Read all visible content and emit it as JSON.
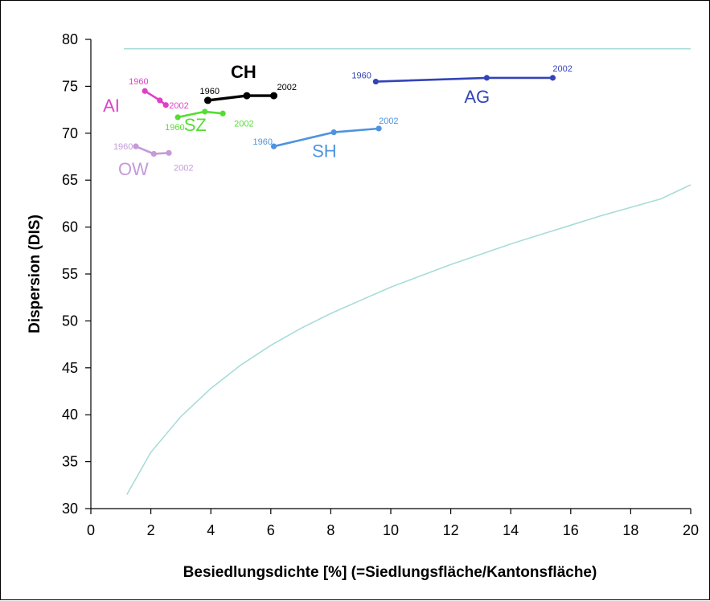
{
  "chart_data": {
    "type": "line",
    "xlabel": "Besiedlungsdichte [%] (=Siedlungsfläche/Kantonsfläche)",
    "ylabel": "Dispersion (DIS)",
    "xlim": [
      0,
      20
    ],
    "ylim": [
      30,
      80
    ],
    "x_ticks": [
      "0",
      "2",
      "4",
      "6",
      "8",
      "10",
      "12",
      "14",
      "16",
      "18",
      "20"
    ],
    "y_ticks": [
      "30",
      "35",
      "40",
      "45",
      "50",
      "55",
      "60",
      "65",
      "70",
      "75",
      "80"
    ],
    "grid": false,
    "series": [
      {
        "name": "AI",
        "color": "#e040c8",
        "points": [
          {
            "x": 1.8,
            "y": 74.5
          },
          {
            "x": 2.3,
            "y": 73.5
          },
          {
            "x": 2.5,
            "y": 73.0
          }
        ],
        "start_label": "1960",
        "end_label": "2002"
      },
      {
        "name": "CH",
        "color": "#000000",
        "bold": true,
        "points": [
          {
            "x": 3.9,
            "y": 73.5
          },
          {
            "x": 5.2,
            "y": 74.0
          },
          {
            "x": 6.1,
            "y": 74.0
          }
        ],
        "start_label": "1960",
        "end_label": "2002"
      },
      {
        "name": "SZ",
        "color": "#55dd33",
        "points": [
          {
            "x": 2.9,
            "y": 71.7
          },
          {
            "x": 3.8,
            "y": 72.3
          },
          {
            "x": 4.4,
            "y": 72.1
          }
        ],
        "start_label": "1960",
        "end_label": "2002"
      },
      {
        "name": "OW",
        "color": "#c49ad8",
        "points": [
          {
            "x": 1.5,
            "y": 68.6
          },
          {
            "x": 2.1,
            "y": 67.8
          },
          {
            "x": 2.6,
            "y": 67.9
          }
        ],
        "start_label": "1960",
        "end_label": "2002"
      },
      {
        "name": "SH",
        "color": "#4c94e0",
        "points": [
          {
            "x": 6.1,
            "y": 68.6
          },
          {
            "x": 8.1,
            "y": 70.1
          },
          {
            "x": 9.6,
            "y": 70.5
          }
        ],
        "start_label": "1960",
        "end_label": "2002"
      },
      {
        "name": "AG",
        "color": "#3344b8",
        "points": [
          {
            "x": 9.5,
            "y": 75.5
          },
          {
            "x": 13.2,
            "y": 75.9
          },
          {
            "x": 15.4,
            "y": 75.9
          }
        ],
        "start_label": "1960",
        "end_label": "2002"
      }
    ],
    "reference_lines": [
      {
        "kind": "horizontal",
        "color": "#a8dcd8",
        "points": [
          {
            "x": 1.1,
            "y": 79
          },
          {
            "x": 20,
            "y": 79
          }
        ]
      },
      {
        "kind": "curve",
        "color": "#a8dcd8",
        "points": [
          {
            "x": 1.2,
            "y": 31.5
          },
          {
            "x": 2.0,
            "y": 36.0
          },
          {
            "x": 3.0,
            "y": 39.8
          },
          {
            "x": 4.0,
            "y": 42.8
          },
          {
            "x": 5.0,
            "y": 45.3
          },
          {
            "x": 6.0,
            "y": 47.4
          },
          {
            "x": 7.0,
            "y": 49.2
          },
          {
            "x": 8.0,
            "y": 50.8
          },
          {
            "x": 9.0,
            "y": 52.2
          },
          {
            "x": 10.0,
            "y": 53.6
          },
          {
            "x": 11.0,
            "y": 54.8
          },
          {
            "x": 12.0,
            "y": 56.0
          },
          {
            "x": 13.0,
            "y": 57.1
          },
          {
            "x": 14.0,
            "y": 58.2
          },
          {
            "x": 15.0,
            "y": 59.2
          },
          {
            "x": 16.0,
            "y": 60.2
          },
          {
            "x": 17.0,
            "y": 61.2
          },
          {
            "x": 18.0,
            "y": 62.1
          },
          {
            "x": 19.0,
            "y": 63.0
          },
          {
            "x": 20.0,
            "y": 64.5
          }
        ]
      }
    ]
  }
}
